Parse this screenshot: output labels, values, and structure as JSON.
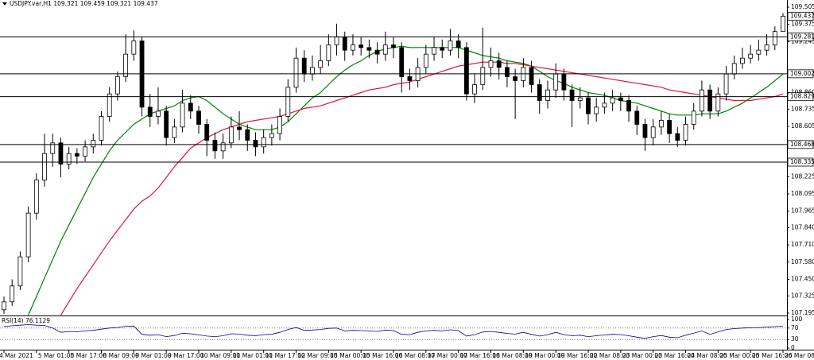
{
  "chart_data": {
    "type": "candlestick",
    "symbol": "USDJPY.var,H1",
    "up_color": "#ffffff",
    "down_color": "#000000",
    "ylim": [
      107.177,
      109.559
    ],
    "yticks": [
      109.505,
      109.375,
      109.245,
      {
        "value": 108.86,
        "label": "108.860"
      },
      108.735,
      108.605,
      108.225,
      108.095,
      107.965,
      {
        "value": 107.84,
        "label": "107.840"
      },
      {
        "value": 107.71,
        "label": "107.710"
      },
      {
        "value": 107.58,
        "label": "107.580"
      },
      {
        "value": 107.45,
        "label": "107.450"
      },
      107.325,
      107.195
    ],
    "xticks": [
      {
        "value": 0,
        "label": "4 Mar 2021"
      },
      {
        "value": 4,
        "label": "5 Mar 01:00"
      },
      {
        "value": 8,
        "label": "5 Mar 17:00"
      },
      {
        "value": 12,
        "label": "8 Mar 09:00"
      },
      {
        "value": 16,
        "label": "9 Mar 01:00"
      },
      {
        "value": 20,
        "label": "9 Mar 17:00"
      },
      {
        "value": 24,
        "label": "10 Mar 09:00"
      },
      {
        "value": 28,
        "label": "11 Mar 01:00"
      },
      {
        "value": 32,
        "label": "11 Mar 17:00"
      },
      {
        "value": 36,
        "label": "12 Mar 09:00"
      },
      {
        "value": 40,
        "label": "15 Mar 00:00"
      },
      {
        "value": 44,
        "label": "15 Mar 16:00"
      },
      {
        "value": 48,
        "label": "16 Mar 08:00"
      },
      {
        "value": 52,
        "label": "17 Mar 00:00"
      },
      {
        "value": 56,
        "label": "17 Mar 16:00"
      },
      {
        "value": 60,
        "label": "18 Mar 08:00"
      },
      {
        "value": 64,
        "label": "19 Mar 00:00"
      },
      {
        "value": 68,
        "label": "19 Mar 16:00"
      },
      {
        "value": 72,
        "label": "22 Mar 08:00"
      },
      {
        "value": 76,
        "label": "23 Mar 00:00"
      },
      {
        "value": 80,
        "label": "23 Mar 16:00"
      },
      {
        "value": 84,
        "label": "24 Mar 08:00"
      },
      {
        "value": 88,
        "label": "25 Mar 00:00"
      },
      {
        "value": 92,
        "label": "25 Mar 16:00"
      },
      {
        "value": 96,
        "label": "26 Mar 08:00"
      }
    ],
    "open": [
      107.22,
      107.28,
      107.4,
      107.62,
      107.95,
      108.2,
      108.4,
      108.48,
      108.32,
      108.4,
      108.38,
      108.45,
      108.5,
      108.68,
      108.85,
      108.98,
      109.15,
      109.25,
      108.75,
      108.68,
      108.72,
      108.52,
      108.6,
      108.78,
      108.72,
      108.62,
      108.5,
      108.42,
      108.48,
      108.6,
      108.58,
      108.5,
      108.45,
      108.52,
      108.55,
      108.68,
      108.9,
      109.12,
      109.0,
      109.05,
      109.1,
      109.22,
      109.28,
      109.18,
      109.22,
      109.2,
      109.18,
      109.15,
      109.22,
      109.2,
      108.98,
      108.95,
      109.05,
      109.15,
      109.2,
      109.18,
      109.25,
      109.2,
      108.85,
      108.92,
      109.05,
      109.1,
      109.05,
      108.98,
      108.95,
      109.05,
      108.92,
      108.8,
      108.88,
      109.0,
      108.88,
      108.8,
      108.82,
      108.7,
      108.75,
      108.78,
      108.82,
      108.8,
      108.72,
      108.62,
      108.52,
      108.6,
      108.65,
      108.55,
      108.5,
      108.62,
      108.72,
      108.88,
      108.72,
      108.85,
      109.0,
      109.08,
      109.12,
      109.15,
      109.18,
      109.22,
      109.321
    ],
    "high": [
      107.32,
      107.45,
      107.66,
      108.0,
      108.25,
      108.55,
      108.55,
      108.52,
      108.45,
      108.44,
      108.5,
      108.55,
      108.72,
      108.9,
      109.02,
      109.3,
      109.33,
      109.28,
      108.85,
      108.9,
      108.76,
      108.66,
      108.88,
      108.84,
      108.76,
      108.66,
      108.56,
      108.55,
      108.68,
      108.72,
      108.62,
      108.56,
      108.58,
      108.62,
      108.74,
      108.96,
      109.2,
      109.18,
      109.14,
      109.22,
      109.3,
      109.38,
      109.32,
      109.3,
      109.28,
      109.26,
      109.24,
      109.32,
      109.28,
      109.24,
      109.04,
      109.12,
      109.22,
      109.28,
      109.26,
      109.34,
      109.3,
      109.24,
      109.0,
      109.35,
      109.2,
      109.16,
      109.1,
      109.04,
      109.12,
      109.1,
      108.96,
      108.95,
      109.08,
      109.04,
      108.92,
      108.9,
      108.86,
      108.82,
      108.86,
      108.88,
      108.86,
      108.84,
      108.76,
      108.66,
      108.66,
      108.72,
      108.7,
      108.6,
      108.68,
      108.78,
      108.95,
      108.92,
      108.9,
      109.06,
      109.14,
      109.2,
      109.22,
      109.26,
      109.3,
      109.36,
      109.459
    ],
    "low": [
      107.19,
      107.25,
      107.37,
      107.58,
      107.9,
      108.15,
      108.3,
      108.22,
      108.28,
      108.32,
      108.34,
      108.4,
      108.46,
      108.64,
      108.8,
      108.94,
      109.1,
      108.68,
      108.6,
      108.62,
      108.46,
      108.48,
      108.56,
      108.66,
      108.55,
      108.38,
      108.36,
      108.36,
      108.44,
      108.5,
      108.42,
      108.38,
      108.4,
      108.46,
      108.5,
      108.64,
      108.86,
      108.94,
      108.95,
      109.0,
      109.06,
      109.14,
      109.1,
      109.14,
      109.14,
      109.12,
      109.08,
      109.1,
      109.12,
      108.86,
      108.88,
      108.9,
      109.0,
      109.1,
      109.12,
      109.14,
      109.12,
      108.8,
      108.78,
      108.88,
      108.98,
      108.96,
      108.9,
      108.66,
      108.9,
      108.86,
      108.7,
      108.74,
      108.82,
      108.8,
      108.6,
      108.74,
      108.62,
      108.64,
      108.7,
      108.72,
      108.72,
      108.64,
      108.54,
      108.42,
      108.46,
      108.54,
      108.48,
      108.45,
      108.46,
      108.58,
      108.68,
      108.66,
      108.68,
      108.8,
      108.96,
      109.04,
      109.08,
      109.1,
      109.14,
      109.18,
      109.321
    ],
    "close": [
      107.28,
      107.4,
      107.62,
      107.95,
      108.2,
      108.4,
      108.48,
      108.32,
      108.4,
      108.38,
      108.45,
      108.5,
      108.68,
      108.85,
      108.98,
      109.15,
      109.25,
      108.75,
      108.68,
      108.72,
      108.52,
      108.6,
      108.78,
      108.72,
      108.62,
      108.5,
      108.42,
      108.48,
      108.6,
      108.58,
      108.5,
      108.45,
      108.52,
      108.55,
      108.68,
      108.9,
      109.12,
      109.0,
      109.05,
      109.1,
      109.22,
      109.28,
      109.18,
      109.22,
      109.2,
      109.18,
      109.15,
      109.22,
      109.2,
      108.98,
      108.95,
      109.05,
      109.15,
      109.2,
      109.18,
      109.25,
      109.2,
      108.85,
      108.92,
      109.05,
      109.1,
      109.05,
      108.98,
      108.95,
      109.05,
      108.92,
      108.8,
      108.88,
      109.0,
      108.88,
      108.8,
      108.82,
      108.7,
      108.75,
      108.78,
      108.82,
      108.8,
      108.72,
      108.62,
      108.52,
      108.6,
      108.65,
      108.55,
      108.5,
      108.62,
      108.72,
      108.88,
      108.72,
      108.85,
      109.0,
      109.08,
      109.12,
      109.15,
      109.18,
      109.22,
      109.321,
      109.437
    ],
    "moving_averages": [
      {
        "color": "#008000",
        "values": [
          null,
          null,
          null,
          107.18,
          107.32,
          107.46,
          107.6,
          107.74,
          107.86,
          107.98,
          108.1,
          108.22,
          108.32,
          108.42,
          108.5,
          108.56,
          108.62,
          108.66,
          108.7,
          108.72,
          108.74,
          108.76,
          108.8,
          108.82,
          108.83,
          108.8,
          108.75,
          108.7,
          108.66,
          108.62,
          108.6,
          108.58,
          108.58,
          108.58,
          108.6,
          108.64,
          108.7,
          108.76,
          108.82,
          108.86,
          108.92,
          108.98,
          109.03,
          109.07,
          109.1,
          109.14,
          109.17,
          109.19,
          109.2,
          109.21,
          109.2,
          109.2,
          109.2,
          109.2,
          109.2,
          109.2,
          109.2,
          109.18,
          109.16,
          109.14,
          109.13,
          109.12,
          109.1,
          109.09,
          109.08,
          109.06,
          109.02,
          108.98,
          108.95,
          108.93,
          108.9,
          108.88,
          108.86,
          108.85,
          108.84,
          108.82,
          108.8,
          108.79,
          108.78,
          108.76,
          108.74,
          108.72,
          108.7,
          108.69,
          108.69,
          108.69,
          108.7,
          108.7,
          108.7,
          108.72,
          108.75,
          108.78,
          108.82,
          108.86,
          108.9,
          108.95,
          109.0
        ]
      },
      {
        "color": "#dc143c",
        "values": [
          null,
          null,
          null,
          null,
          null,
          null,
          null,
          107.18,
          107.28,
          107.38,
          107.47,
          107.56,
          107.65,
          107.74,
          107.82,
          107.9,
          107.98,
          108.04,
          108.08,
          108.14,
          108.22,
          108.3,
          108.37,
          108.44,
          108.48,
          108.52,
          108.55,
          108.58,
          108.6,
          108.62,
          108.64,
          108.65,
          108.66,
          108.67,
          108.68,
          108.7,
          108.72,
          108.74,
          108.75,
          108.76,
          108.78,
          108.8,
          108.82,
          108.84,
          108.86,
          108.88,
          108.89,
          108.9,
          108.92,
          108.93,
          108.94,
          108.96,
          108.98,
          109.0,
          109.02,
          109.04,
          109.06,
          109.07,
          109.08,
          109.09,
          109.09,
          109.09,
          109.08,
          109.08,
          109.07,
          109.06,
          109.05,
          109.04,
          109.03,
          109.02,
          109.01,
          109.0,
          108.99,
          108.98,
          108.97,
          108.96,
          108.95,
          108.94,
          108.93,
          108.92,
          108.91,
          108.9,
          108.88,
          108.87,
          108.86,
          108.85,
          108.84,
          108.83,
          108.82,
          108.81,
          108.8,
          108.8,
          108.8,
          108.81,
          108.82,
          108.83,
          108.85
        ]
      }
    ],
    "levels": [
      109.281,
      109.002,
      108.829,
      108.468,
      108.335
    ],
    "rsi": {
      "name": "RSI(14)",
      "color": "#00008b",
      "ylim": [
        0,
        100
      ],
      "yticks": [
        100,
        70,
        30,
        0
      ],
      "levels": [
        70,
        30
      ],
      "values": [
        75,
        78,
        80,
        82,
        80,
        79,
        70,
        55,
        58,
        57,
        60,
        62,
        66,
        70,
        72,
        76,
        77,
        48,
        45,
        47,
        40,
        44,
        52,
        50,
        46,
        42,
        40,
        43,
        50,
        49,
        45,
        43,
        47,
        48,
        55,
        65,
        72,
        62,
        63,
        65,
        69,
        70,
        60,
        62,
        61,
        60,
        58,
        63,
        61,
        48,
        47,
        55,
        60,
        62,
        60,
        64,
        61,
        42,
        47,
        56,
        58,
        55,
        51,
        49,
        55,
        48,
        42,
        47,
        55,
        47,
        43,
        45,
        40,
        43,
        46,
        48,
        47,
        43,
        38,
        34,
        40,
        44,
        38,
        36,
        45,
        52,
        60,
        48,
        56,
        65,
        68,
        70,
        71,
        72,
        73,
        75,
        76.1129
      ]
    }
  }
}
